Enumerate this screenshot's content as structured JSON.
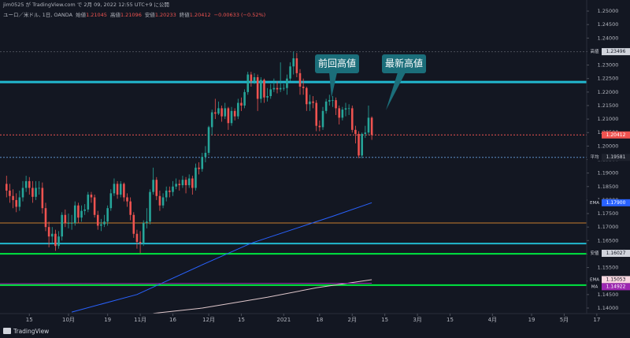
{
  "header": {
    "publisher": "jim0525 が TradingView.com で 2月 09, 2022 12:55 UTC+9 に公開",
    "symbol": "ユーロ／米ドル, 1日, OANDA",
    "ohlc": [
      {
        "label": "始値",
        "value": "1.21045"
      },
      {
        "label": "高値",
        "value": "1.21096"
      },
      {
        "label": "安値",
        "value": "1.20233"
      },
      {
        "label": "終値",
        "value": "1.20412"
      }
    ],
    "change": "−0.00633 (−0.52%)"
  },
  "annotations": [
    {
      "text": "前回高値"
    },
    {
      "text": "最新高値"
    }
  ],
  "footer": {
    "brand": "TradingView"
  },
  "chart_data": {
    "type": "candlestick",
    "up_color": "#26a69a",
    "down_color": "#ef5350",
    "open": [
      1.186,
      1.1835,
      1.1815,
      1.18,
      1.1775,
      1.181,
      1.1845,
      1.187,
      1.1845,
      1.1812,
      1.1845,
      1.1845,
      1.177,
      1.17,
      1.1665,
      1.1675,
      1.163,
      1.1665,
      1.1745,
      1.1715,
      1.1715,
      1.1715,
      1.178,
      1.1735,
      1.176,
      1.1765,
      1.182,
      1.181,
      1.1745,
      1.1705,
      1.171,
      1.172,
      1.177,
      1.1825,
      1.186,
      1.182,
      1.186,
      1.181,
      1.1795,
      1.1745,
      1.1675,
      1.1645,
      1.164,
      1.1715,
      1.172,
      1.183,
      1.1875,
      1.1815,
      1.178,
      1.181,
      1.1835,
      1.183,
      1.185,
      1.186,
      1.1855,
      1.1875,
      1.1855,
      1.188,
      1.1845,
      1.192,
      1.1915,
      1.196,
      1.1975,
      1.207,
      1.2125,
      1.212,
      1.214,
      1.211,
      1.214,
      1.2085,
      1.213,
      1.211,
      1.216,
      1.215,
      1.22,
      1.2265,
      1.224,
      1.2255,
      1.2175,
      1.2245,
      1.218,
      1.2185,
      1.221,
      1.2215,
      1.221,
      1.2215,
      1.2215,
      1.225,
      1.2295,
      1.2325,
      1.227,
      1.222,
      1.2215,
      1.2155,
      1.2165,
      1.216,
      1.2075,
      1.207,
      1.213,
      1.2165,
      1.217,
      1.217,
      1.214,
      1.2105,
      1.2135,
      1.214,
      1.214,
      1.206,
      1.2045,
      1.1965,
      1.2045,
      1.205,
      1.2105
    ],
    "high": [
      1.189,
      1.186,
      1.184,
      1.1825,
      1.1835,
      1.187,
      1.189,
      1.1885,
      1.187,
      1.187,
      1.187,
      1.1865,
      1.179,
      1.172,
      1.17,
      1.169,
      1.1685,
      1.1755,
      1.1765,
      1.175,
      1.1745,
      1.1795,
      1.179,
      1.178,
      1.1785,
      1.183,
      1.183,
      1.182,
      1.176,
      1.173,
      1.1745,
      1.178,
      1.184,
      1.188,
      1.187,
      1.187,
      1.1865,
      1.1825,
      1.181,
      1.1755,
      1.169,
      1.1685,
      1.1725,
      1.177,
      1.184,
      1.192,
      1.1885,
      1.1835,
      1.1825,
      1.185,
      1.185,
      1.187,
      1.188,
      1.1875,
      1.189,
      1.1885,
      1.1895,
      1.189,
      1.1935,
      1.194,
      1.1975,
      1.2,
      1.2075,
      1.2135,
      1.2175,
      1.2165,
      1.215,
      1.216,
      1.2145,
      1.2145,
      1.214,
      1.2175,
      1.218,
      1.221,
      1.2275,
      1.2275,
      1.227,
      1.2265,
      1.2255,
      1.225,
      1.2215,
      1.223,
      1.225,
      1.224,
      1.231,
      1.223,
      1.2265,
      1.231,
      1.235,
      1.2345,
      1.2285,
      1.225,
      1.222,
      1.219,
      1.2185,
      1.217,
      1.2095,
      1.2145,
      1.2175,
      1.219,
      1.2185,
      1.218,
      1.215,
      1.2145,
      1.216,
      1.2155,
      1.215,
      1.2075,
      1.2055,
      1.205,
      1.2075,
      1.215,
      1.211
    ],
    "low": [
      1.181,
      1.179,
      1.177,
      1.1755,
      1.176,
      1.1795,
      1.183,
      1.182,
      1.179,
      1.18,
      1.182,
      1.175,
      1.1685,
      1.1625,
      1.164,
      1.1612,
      1.162,
      1.165,
      1.17,
      1.1695,
      1.169,
      1.1705,
      1.1715,
      1.172,
      1.1745,
      1.1755,
      1.179,
      1.1735,
      1.169,
      1.1685,
      1.17,
      1.1705,
      1.176,
      1.1815,
      1.1805,
      1.181,
      1.1795,
      1.1775,
      1.1725,
      1.166,
      1.162,
      1.1603,
      1.163,
      1.1695,
      1.171,
      1.182,
      1.18,
      1.176,
      1.177,
      1.1795,
      1.181,
      1.1815,
      1.184,
      1.1835,
      1.1845,
      1.1825,
      1.1845,
      1.182,
      1.1835,
      1.1895,
      1.1905,
      1.194,
      1.1965,
      1.204,
      1.21,
      1.2115,
      1.209,
      1.21,
      1.206,
      1.2075,
      1.2095,
      1.21,
      1.213,
      1.214,
      1.219,
      1.222,
      1.223,
      1.213,
      1.216,
      1.216,
      1.2165,
      1.2175,
      1.22,
      1.2195,
      1.22,
      1.2205,
      1.219,
      1.224,
      1.2265,
      1.2255,
      1.219,
      1.219,
      1.213,
      1.213,
      1.214,
      1.2055,
      1.2055,
      1.206,
      1.212,
      1.215,
      1.2145,
      1.2115,
      1.208,
      1.2095,
      1.211,
      1.2115,
      1.205,
      1.201,
      1.1955,
      1.1955,
      1.203,
      1.204,
      1.2023
    ],
    "close": [
      1.1835,
      1.1815,
      1.18,
      1.1775,
      1.181,
      1.1845,
      1.187,
      1.1845,
      1.1812,
      1.1845,
      1.1845,
      1.177,
      1.17,
      1.1665,
      1.1675,
      1.163,
      1.1665,
      1.1745,
      1.1715,
      1.1715,
      1.1715,
      1.178,
      1.1735,
      1.176,
      1.1765,
      1.182,
      1.181,
      1.1745,
      1.1705,
      1.171,
      1.172,
      1.177,
      1.1825,
      1.186,
      1.182,
      1.186,
      1.181,
      1.1795,
      1.1745,
      1.1675,
      1.1645,
      1.164,
      1.1715,
      1.172,
      1.183,
      1.1875,
      1.1815,
      1.178,
      1.181,
      1.1835,
      1.183,
      1.185,
      1.186,
      1.1855,
      1.1875,
      1.1855,
      1.188,
      1.1845,
      1.192,
      1.1915,
      1.196,
      1.1975,
      1.207,
      1.2125,
      1.212,
      1.214,
      1.211,
      1.214,
      1.2085,
      1.213,
      1.211,
      1.216,
      1.215,
      1.22,
      1.2265,
      1.224,
      1.2255,
      1.2175,
      1.2245,
      1.218,
      1.2185,
      1.221,
      1.2215,
      1.221,
      1.2215,
      1.2215,
      1.225,
      1.2295,
      1.2325,
      1.227,
      1.222,
      1.2215,
      1.2155,
      1.2165,
      1.216,
      1.2075,
      1.207,
      1.213,
      1.2165,
      1.217,
      1.217,
      1.214,
      1.2105,
      1.2135,
      1.214,
      1.214,
      1.206,
      1.2045,
      1.1965,
      1.2045,
      1.205,
      1.2105,
      1.2041
    ],
    "xlim": [
      -2,
      182
    ],
    "xticks": [
      {
        "value": 7,
        "label": "15"
      },
      {
        "value": 19,
        "label": "10月"
      },
      {
        "value": 31,
        "label": "19"
      },
      {
        "value": 41,
        "label": "11月"
      },
      {
        "value": 51,
        "label": "16"
      },
      {
        "value": 62,
        "label": "12月"
      },
      {
        "value": 72,
        "label": "15"
      },
      {
        "value": 85,
        "label": "2021"
      },
      {
        "value": 96,
        "label": "18"
      },
      {
        "value": 106,
        "label": "2月"
      },
      {
        "value": 116,
        "label": "15"
      },
      {
        "value": 126,
        "label": "3月"
      },
      {
        "value": 136,
        "label": "15"
      },
      {
        "value": 149,
        "label": "4月"
      },
      {
        "value": 161,
        "label": "19"
      },
      {
        "value": 171,
        "label": "5月"
      },
      {
        "value": 181,
        "label": "17"
      }
    ],
    "ylim": [
      1.13795,
      1.2541
    ],
    "yticks": [
      {
        "value": 1.14,
        "label": "1.14000"
      },
      {
        "value": 1.145,
        "label": "1.14500"
      },
      {
        "value": 1.15,
        "label": "1.15000"
      },
      {
        "value": 1.155,
        "label": "1.15500"
      },
      {
        "value": 1.16,
        "label": "1.16000"
      },
      {
        "value": 1.165,
        "label": "1.16500"
      },
      {
        "value": 1.17,
        "label": "1.17000"
      },
      {
        "value": 1.175,
        "label": "1.17500"
      },
      {
        "value": 1.18,
        "label": "1.18000"
      },
      {
        "value": 1.185,
        "label": "1.18500"
      },
      {
        "value": 1.19,
        "label": "1.19000"
      },
      {
        "value": 1.195,
        "label": "1.19500"
      },
      {
        "value": 1.2,
        "label": "1.20000"
      },
      {
        "value": 1.205,
        "label": "1.20500"
      },
      {
        "value": 1.21,
        "label": "1.21000"
      },
      {
        "value": 1.215,
        "label": "1.21500"
      },
      {
        "value": 1.22,
        "label": "1.22000"
      },
      {
        "value": 1.225,
        "label": "1.22500"
      },
      {
        "value": 1.23,
        "label": "1.23000"
      },
      {
        "value": 1.235,
        "label": "1.23500"
      },
      {
        "value": 1.24,
        "label": "1.24000"
      },
      {
        "value": 1.245,
        "label": "1.24500"
      },
      {
        "value": 1.25,
        "label": "1.25000"
      }
    ],
    "grid": false,
    "lines": [
      {
        "color": "#2962ff",
        "x": [
          20,
          40,
          60,
          75,
          90,
          100,
          112
        ],
        "values": [
          1.1385,
          1.145,
          1.156,
          1.164,
          1.17,
          1.174,
          1.179
        ]
      },
      {
        "color": "#e0c8cc",
        "x": [
          45,
          60,
          80,
          95,
          112
        ],
        "values": [
          1.138,
          1.14,
          1.144,
          1.1475,
          1.1505
        ]
      },
      {
        "color": "#9c27b0",
        "x": [
          -2,
          112
        ],
        "values": [
          1.149,
          1.1492
        ]
      }
    ],
    "levels": [
      {
        "value": 1.2237,
        "color": "#22b8cf",
        "width": 3,
        "dash": false
      },
      {
        "value": 1.1639,
        "color": "#22b8cf",
        "width": 2,
        "dash": false
      },
      {
        "value": 1.1601,
        "color": "#00e640",
        "width": 2,
        "dash": false
      },
      {
        "value": 1.1485,
        "color": "#00e640",
        "width": 2,
        "dash": false
      },
      {
        "value": 1.1715,
        "color": "#c77d2e",
        "width": 1,
        "dash": false
      },
      {
        "value": 1.23496,
        "color": "#4a4e59",
        "width": 1,
        "dash": true
      },
      {
        "value": 1.20412,
        "color": "#ef5350",
        "width": 1,
        "dash": true
      },
      {
        "value": 1.19581,
        "color": "#5d8fc7",
        "width": 1,
        "dash": true
      }
    ],
    "price_tags": [
      {
        "name": "高値",
        "value": 1.23496,
        "bg": "#d1d4dc",
        "fg": "#131722"
      },
      {
        "value": 1.20412,
        "bg": "#ef5350",
        "fg": "#ffffff"
      },
      {
        "name": "平均",
        "value": 1.19581,
        "bg": "#1e222d",
        "fg": "#d1d4dc"
      },
      {
        "name": "EMA",
        "value": 1.179,
        "label": "1.17900",
        "bg": "#2962ff",
        "fg": "#ffffff"
      },
      {
        "name": "安値",
        "value": 1.16027,
        "bg": "#d1d4dc",
        "fg": "#131722"
      },
      {
        "name": "EMA",
        "value": 1.15053,
        "bg": "#f8d7e0",
        "fg": "#131722"
      },
      {
        "name": "MA",
        "value": 1.14922,
        "bg": "#9c27b0",
        "fg": "#ffffff"
      }
    ]
  }
}
